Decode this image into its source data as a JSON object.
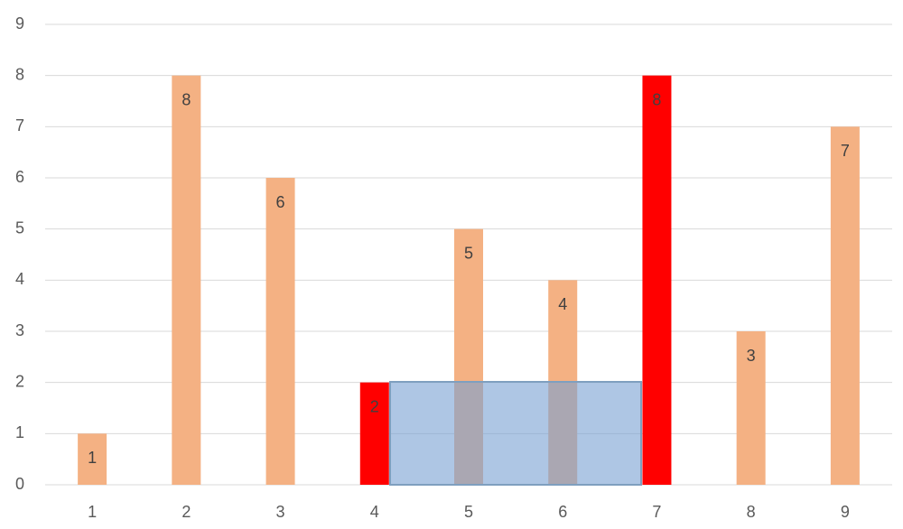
{
  "chart_data": {
    "type": "bar",
    "categories": [
      "1",
      "2",
      "3",
      "4",
      "5",
      "6",
      "7",
      "8",
      "9"
    ],
    "values": [
      1,
      8,
      6,
      2,
      5,
      4,
      8,
      3,
      7
    ],
    "colors": [
      "#f4b183",
      "#f4b183",
      "#f4b183",
      "#ff0000",
      "#f4b183",
      "#f4b183",
      "#ff0000",
      "#f4b183",
      "#f4b183"
    ],
    "ylim": [
      0,
      9
    ],
    "yticks": [
      0,
      1,
      2,
      3,
      4,
      5,
      6,
      7,
      8,
      9
    ],
    "grid": true
  }
}
